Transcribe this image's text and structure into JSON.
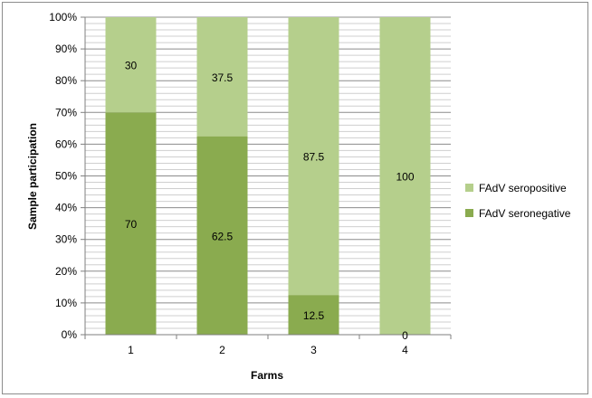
{
  "chart_data": {
    "type": "bar",
    "stacked": "percent",
    "categories": [
      "1",
      "2",
      "3",
      "4"
    ],
    "series": [
      {
        "name": "FAdV seronegative",
        "values": [
          70,
          62.5,
          12.5,
          0
        ],
        "color": "#8aab4f"
      },
      {
        "name": "FAdV seropositive",
        "values": [
          30,
          37.5,
          87.5,
          100
        ],
        "color": "#b5cf8c"
      }
    ],
    "data_labels": [
      [
        "70",
        "62.5",
        "12.5",
        "0"
      ],
      [
        "30",
        "37.5",
        "87.5",
        "100"
      ]
    ],
    "xlabel": "Farms",
    "ylabel": "Sample participation",
    "ylim": [
      0,
      100
    ],
    "yticks": [
      "0%",
      "10%",
      "20%",
      "30%",
      "40%",
      "50%",
      "60%",
      "70%",
      "80%",
      "90%",
      "100%"
    ],
    "grid": true,
    "legend_position": "right",
    "legend": [
      "FAdV seropositive",
      "FAdV seronegative"
    ]
  }
}
